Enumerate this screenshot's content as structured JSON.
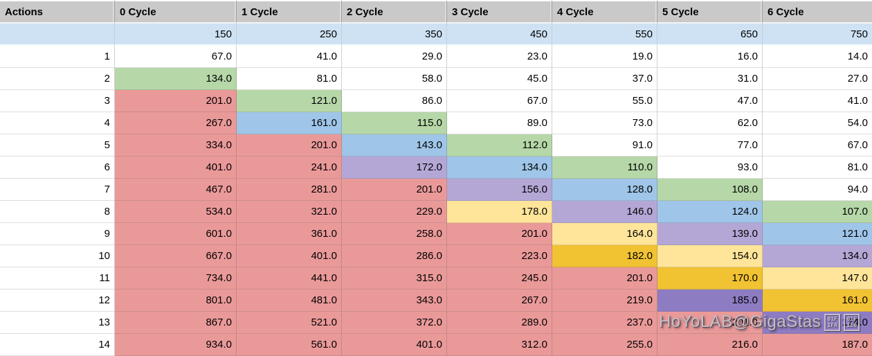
{
  "table": {
    "columns": [
      "Actions",
      "0 Cycle",
      "1 Cycle",
      "2 Cycle",
      "3 Cycle",
      "4 Cycle",
      "5 Cycle",
      "6 Cycle"
    ],
    "thresholds": [
      "",
      "150",
      "250",
      "350",
      "450",
      "550",
      "650",
      "750"
    ],
    "rows": [
      {
        "label": "1",
        "values": [
          "67.0",
          "41.0",
          "29.0",
          "23.0",
          "19.0",
          "16.0",
          "14.0"
        ],
        "colors": [
          "white",
          "white",
          "white",
          "white",
          "white",
          "white",
          "white"
        ]
      },
      {
        "label": "2",
        "values": [
          "134.0",
          "81.0",
          "58.0",
          "45.0",
          "37.0",
          "31.0",
          "27.0"
        ],
        "colors": [
          "green",
          "white",
          "white",
          "white",
          "white",
          "white",
          "white"
        ]
      },
      {
        "label": "3",
        "values": [
          "201.0",
          "121.0",
          "86.0",
          "67.0",
          "55.0",
          "47.0",
          "41.0"
        ],
        "colors": [
          "red",
          "green",
          "white",
          "white",
          "white",
          "white",
          "white"
        ]
      },
      {
        "label": "4",
        "values": [
          "267.0",
          "161.0",
          "115.0",
          "89.0",
          "73.0",
          "62.0",
          "54.0"
        ],
        "colors": [
          "red",
          "blue",
          "green",
          "white",
          "white",
          "white",
          "white"
        ]
      },
      {
        "label": "5",
        "values": [
          "334.0",
          "201.0",
          "143.0",
          "112.0",
          "91.0",
          "77.0",
          "67.0"
        ],
        "colors": [
          "red",
          "red",
          "blue",
          "green",
          "white",
          "white",
          "white"
        ]
      },
      {
        "label": "6",
        "values": [
          "401.0",
          "241.0",
          "172.0",
          "134.0",
          "110.0",
          "93.0",
          "81.0"
        ],
        "colors": [
          "red",
          "red",
          "purple",
          "blue",
          "green",
          "white",
          "white"
        ]
      },
      {
        "label": "7",
        "values": [
          "467.0",
          "281.0",
          "201.0",
          "156.0",
          "128.0",
          "108.0",
          "94.0"
        ],
        "colors": [
          "red",
          "red",
          "red",
          "purple",
          "blue",
          "green",
          "white"
        ]
      },
      {
        "label": "8",
        "values": [
          "534.0",
          "321.0",
          "229.0",
          "178.0",
          "146.0",
          "124.0",
          "107.0"
        ],
        "colors": [
          "red",
          "red",
          "red",
          "yellow",
          "purple",
          "blue",
          "green"
        ]
      },
      {
        "label": "9",
        "values": [
          "601.0",
          "361.0",
          "258.0",
          "201.0",
          "164.0",
          "139.0",
          "121.0"
        ],
        "colors": [
          "red",
          "red",
          "red",
          "red",
          "yellow",
          "purple",
          "blue"
        ]
      },
      {
        "label": "10",
        "values": [
          "667.0",
          "401.0",
          "286.0",
          "223.0",
          "182.0",
          "154.0",
          "134.0"
        ],
        "colors": [
          "red",
          "red",
          "red",
          "red",
          "gold",
          "yellow",
          "purple"
        ]
      },
      {
        "label": "11",
        "values": [
          "734.0",
          "441.0",
          "315.0",
          "245.0",
          "201.0",
          "170.0",
          "147.0"
        ],
        "colors": [
          "red",
          "red",
          "red",
          "red",
          "red",
          "gold",
          "yellow"
        ]
      },
      {
        "label": "12",
        "values": [
          "801.0",
          "481.0",
          "343.0",
          "267.0",
          "219.0",
          "185.0",
          "161.0"
        ],
        "colors": [
          "red",
          "red",
          "red",
          "red",
          "red",
          "darkpurple",
          "gold"
        ]
      },
      {
        "label": "13",
        "values": [
          "867.0",
          "521.0",
          "372.0",
          "289.0",
          "237.0",
          "201.0",
          "174.0"
        ],
        "colors": [
          "red",
          "red",
          "red",
          "red",
          "red",
          "red",
          "darkpurple"
        ]
      },
      {
        "label": "14",
        "values": [
          "934.0",
          "561.0",
          "401.0",
          "312.0",
          "255.0",
          "216.0",
          "187.0"
        ],
        "colors": [
          "red",
          "red",
          "red",
          "red",
          "red",
          "red",
          "red"
        ]
      }
    ]
  },
  "palette": {
    "header_bg": "#c9c9c9",
    "threshold_bg": "#cfe2f3",
    "white": "#ffffff",
    "green": "#b6d7a8",
    "blue": "#9fc5e8",
    "purple": "#b4a7d6",
    "darkpurple": "#8e7cc3",
    "yellow": "#ffe599",
    "gold": "#f1c232",
    "red": "#ea9999"
  },
  "watermark": {
    "text": "HoYoLAB@GigaStas",
    "missing_glyphs": [
      {
        "top": "01F",
        "bottom": "1FA"
      },
      {
        "top": "01F",
        "bottom": "1E6"
      }
    ]
  }
}
